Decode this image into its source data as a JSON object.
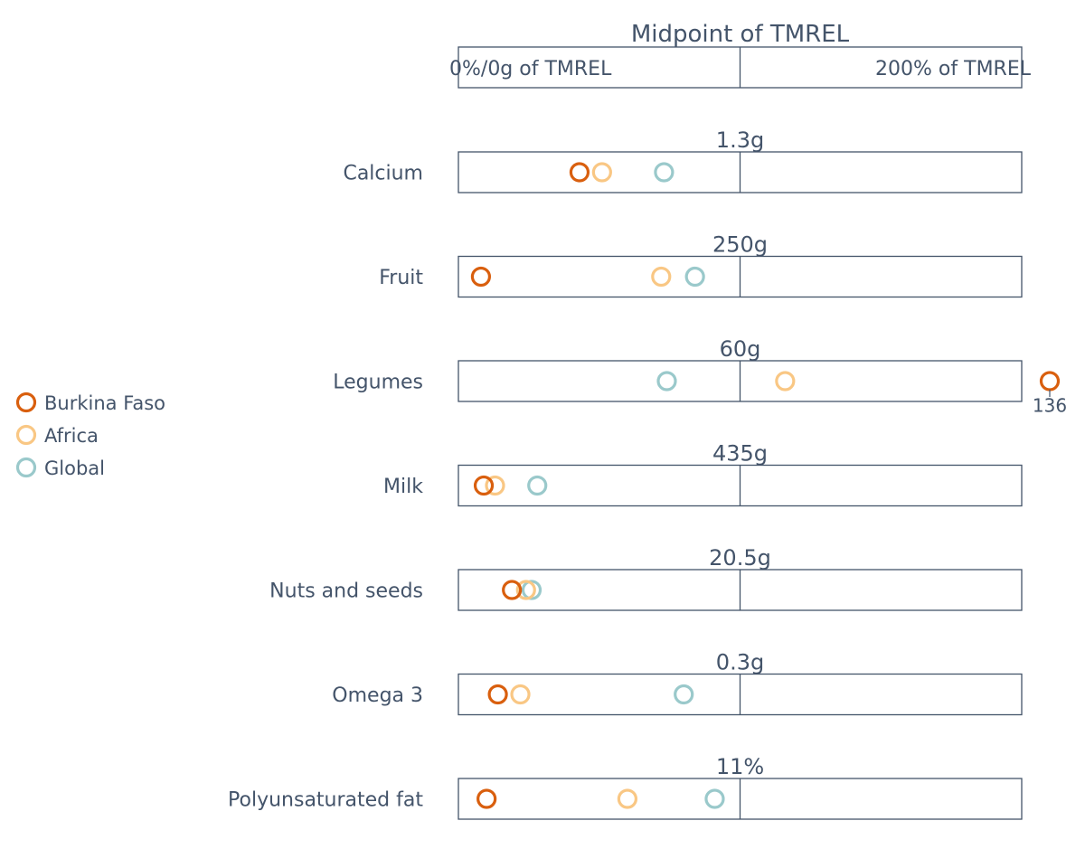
{
  "chart_data": {
    "type": "scatter",
    "header": {
      "title": "Midpoint of TMREL",
      "left_label": "0%/0g of TMREL",
      "right_label": "200% of TMREL"
    },
    "x_scale": {
      "unit": "percent of TMREL",
      "min": 0,
      "mid": 100,
      "max": 200
    },
    "legend": {
      "placement": "left",
      "items": [
        {
          "name": "Burkina Faso",
          "color": "#d95f0e"
        },
        {
          "name": "Africa",
          "color": "#f9c784"
        },
        {
          "name": "Global",
          "color": "#9ac9cb"
        }
      ]
    },
    "rows": [
      {
        "label": "Calcium",
        "tmrel": "1.3g",
        "values": {
          "Burkina Faso": 43,
          "Africa": 51,
          "Global": 73
        }
      },
      {
        "label": "Fruit",
        "tmrel": "250g",
        "values": {
          "Burkina Faso": 8,
          "Africa": 72,
          "Global": 84
        }
      },
      {
        "label": "Legumes",
        "tmrel": "60g",
        "values": {
          "Burkina Faso": 136,
          "Africa": 116,
          "Global": 74
        },
        "overflow": {
          "series": "Burkina Faso",
          "label": "136"
        }
      },
      {
        "label": "Milk",
        "tmrel": "435g",
        "values": {
          "Burkina Faso": 9,
          "Africa": 13,
          "Global": 28
        }
      },
      {
        "label": "Nuts and seeds",
        "tmrel": "20.5g",
        "values": {
          "Burkina Faso": 19,
          "Africa": 24,
          "Global": 26
        }
      },
      {
        "label": "Omega 3",
        "tmrel": "0.3g",
        "values": {
          "Burkina Faso": 14,
          "Africa": 22,
          "Global": 80
        }
      },
      {
        "label": "Polyunsaturated fat",
        "tmrel": "11%",
        "values": {
          "Burkina Faso": 10,
          "Africa": 60,
          "Global": 91
        }
      }
    ]
  }
}
